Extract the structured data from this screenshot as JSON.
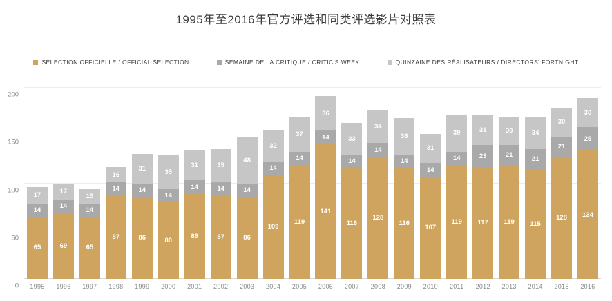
{
  "title": "1995年至2016年官方评选和同类评选影片对照表",
  "colors": {
    "official_selection": "#cfa45e",
    "critics_week": "#a9a9a9",
    "directors_fortnight": "#c6c6c6",
    "gridline": "#ececec",
    "axis_text": "#8a8a8a",
    "bar_label": "#ffffff"
  },
  "legend": [
    {
      "label": "SÉLECTION OFFICIELLE / OFFICIAL SELECTION",
      "color": "#cfa45e"
    },
    {
      "label": "SEMAINE DE LA CRITIQUE / CRITIC'S WEEK",
      "color": "#a9a9a9"
    },
    {
      "label": "QUINZAINE DES RÉALISATEURS / DIRECTORS' FORTNIGHT",
      "color": "#c6c6c6"
    }
  ],
  "chart_data": {
    "type": "bar",
    "stacked": true,
    "title": "1995年至2016年官方评选和同类评选影片对照表",
    "categories": [
      "1995",
      "1996",
      "1997",
      "1998",
      "1999",
      "2000",
      "2001",
      "2002",
      "2003",
      "2004",
      "2005",
      "2006",
      "2007",
      "2008",
      "2009",
      "2010",
      "2011",
      "2012",
      "2013",
      "2014",
      "2015",
      "2016"
    ],
    "series": [
      {
        "name": "SÉLECTION OFFICIELLE / OFFICIAL SELECTION",
        "color": "#cfa45e",
        "values": [
          65,
          69,
          65,
          87,
          86,
          80,
          89,
          87,
          86,
          109,
          119,
          141,
          116,
          128,
          116,
          107,
          119,
          117,
          119,
          115,
          128,
          134
        ]
      },
      {
        "name": "SEMAINE DE LA CRITIQUE / CRITIC'S WEEK",
        "color": "#a9a9a9",
        "values": [
          14,
          14,
          14,
          14,
          14,
          14,
          14,
          14,
          14,
          14,
          14,
          14,
          14,
          14,
          14,
          14,
          14,
          23,
          21,
          21,
          21,
          25
        ]
      },
      {
        "name": "QUINZAINE DES RÉALISATEURS / DIRECTORS' FORTNIGHT",
        "color": "#c6c6c6",
        "values": [
          17,
          17,
          15,
          16,
          31,
          35,
          31,
          35,
          48,
          32,
          37,
          36,
          33,
          34,
          38,
          31,
          39,
          31,
          30,
          34,
          30,
          30
        ]
      }
    ],
    "xlabel": "",
    "ylabel": "",
    "yticks": [
      0,
      50,
      100,
      150,
      200
    ],
    "ylim": [
      0,
      200
    ],
    "grid": true,
    "legend_position": "top",
    "data_labels": true
  }
}
